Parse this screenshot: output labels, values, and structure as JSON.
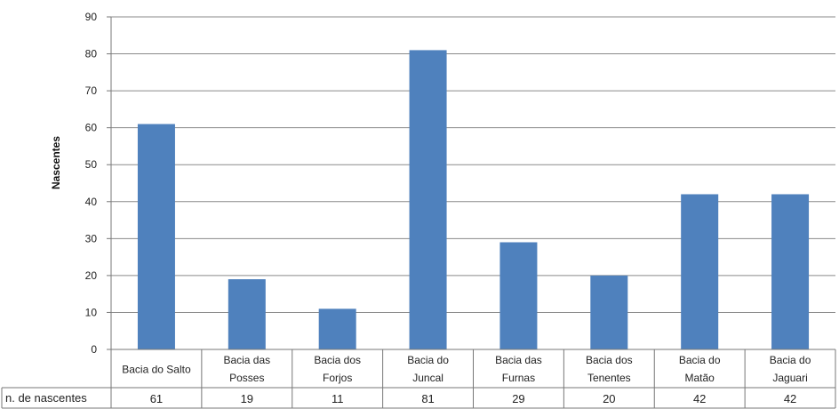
{
  "chart_data": {
    "type": "bar",
    "title": "",
    "xlabel": "",
    "ylabel": "Nascentes",
    "ylim": [
      0,
      90
    ],
    "yticks": [
      0,
      10,
      20,
      30,
      40,
      50,
      60,
      70,
      80,
      90
    ],
    "grid": true,
    "categories": [
      [
        "Bacia do Salto"
      ],
      [
        "Bacia das",
        "Posses"
      ],
      [
        "Bacia dos",
        "Forjos"
      ],
      [
        "Bacia do",
        "Juncal"
      ],
      [
        "Bacia das",
        "Furnas"
      ],
      [
        "Bacia dos",
        "Tenentes"
      ],
      [
        "Bacia do",
        "Matão"
      ],
      [
        "Bacia do",
        "Jaguari"
      ]
    ],
    "series": [
      {
        "name": "n. de nascentes",
        "values": [
          61,
          19,
          11,
          81,
          29,
          20,
          42,
          42
        ]
      }
    ],
    "bar_color": "#4f81bd"
  }
}
